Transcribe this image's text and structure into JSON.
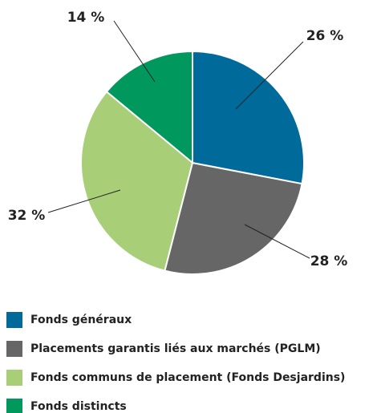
{
  "chart_data": {
    "type": "pie",
    "categories": [
      "Fonds généraux",
      "Placements garantis liés aux marchés (PGLM)",
      "Fonds communs de placement (Fonds Desjardins)",
      "Fonds distincts"
    ],
    "values": [
      28,
      26,
      32,
      14
    ],
    "value_labels": [
      "28 %",
      "26 %",
      "32 %",
      "14 %"
    ],
    "colors": [
      "#006b9b",
      "#666666",
      "#a8cf78",
      "#00985d"
    ]
  }
}
